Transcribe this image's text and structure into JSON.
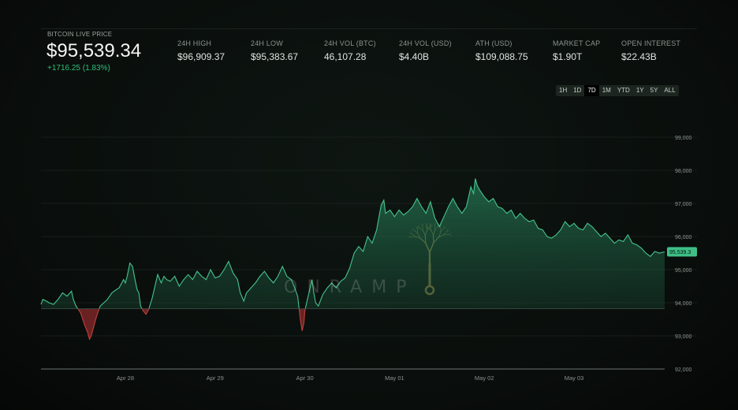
{
  "header": {
    "live_label": "BITCOIN LIVE PRICE",
    "price": "$95,539.34",
    "change": "+1716.25 (1.83%)",
    "stats": [
      {
        "label": "24H HIGH",
        "value": "$96,909.37"
      },
      {
        "label": "24H LOW",
        "value": "$95,383.67"
      },
      {
        "label": "24H VOL (BTC)",
        "value": "46,107.28"
      },
      {
        "label": "24H VOL (USD)",
        "value": "$4.40B"
      },
      {
        "label": "ATH (USD)",
        "value": "$109,088.75"
      },
      {
        "label": "MARKET CAP",
        "value": "$1.90T"
      },
      {
        "label": "OPEN INTEREST",
        "value": "$22.43B"
      }
    ]
  },
  "range_buttons": [
    "1H",
    "1D",
    "7D",
    "1M",
    "YTD",
    "1Y",
    "5Y",
    "ALL"
  ],
  "active_range": "7D",
  "watermark": "ONRAMP",
  "colors": {
    "up_line": "#3fbf86",
    "down_fill": "#9b2b2b",
    "badge": "#3fbf86",
    "grid": "#1c2420",
    "text_muted": "#8b948f"
  },
  "chart_data": {
    "type": "area",
    "x_unit": "days since Apr 27 00:00 (Apr 28 = 1, May 03 = 6)",
    "x_ticks": [
      {
        "x": 1,
        "label": "Apr 28"
      },
      {
        "x": 2,
        "label": "Apr 29"
      },
      {
        "x": 3,
        "label": "Apr 30"
      },
      {
        "x": 4,
        "label": "May 01"
      },
      {
        "x": 5,
        "label": "May 02"
      },
      {
        "x": 6,
        "label": "May 03"
      }
    ],
    "y_ticks": [
      {
        "y": 92000,
        "label": "92,000"
      },
      {
        "y": 93000,
        "label": "93,000"
      },
      {
        "y": 94000,
        "label": "94,000"
      },
      {
        "y": 95000,
        "label": "95,000"
      },
      {
        "y": 96000,
        "label": "96,000"
      },
      {
        "y": 97000,
        "label": "97,000"
      },
      {
        "y": 98000,
        "label": "98,000"
      },
      {
        "y": 99000,
        "label": "99,000"
      }
    ],
    "ylim": [
      92000,
      99000
    ],
    "xlim": [
      0.06,
      7.01
    ],
    "baseline": 93820,
    "current_value": 95539.34,
    "current_label": "95,539.3",
    "grid": true,
    "series": [
      {
        "name": "BTC price",
        "points": [
          [
            0.06,
            93950
          ],
          [
            0.08,
            94100
          ],
          [
            0.12,
            94050
          ],
          [
            0.15,
            94000
          ],
          [
            0.2,
            93950
          ],
          [
            0.25,
            94100
          ],
          [
            0.3,
            94300
          ],
          [
            0.35,
            94200
          ],
          [
            0.4,
            94350
          ],
          [
            0.42,
            94100
          ],
          [
            0.45,
            93900
          ],
          [
            0.5,
            93700
          ],
          [
            0.55,
            93300
          ],
          [
            0.58,
            93100
          ],
          [
            0.6,
            92900
          ],
          [
            0.62,
            93000
          ],
          [
            0.65,
            93300
          ],
          [
            0.68,
            93600
          ],
          [
            0.72,
            93900
          ],
          [
            0.76,
            94000
          ],
          [
            0.8,
            94100
          ],
          [
            0.85,
            94300
          ],
          [
            0.9,
            94400
          ],
          [
            0.93,
            94450
          ],
          [
            0.97,
            94650
          ],
          [
            1.0,
            94600
          ],
          [
            0.98,
            94700
          ],
          [
            1.02,
            94800
          ],
          [
            1.05,
            95200
          ],
          [
            1.08,
            95100
          ],
          [
            1.1,
            94800
          ],
          [
            1.13,
            94400
          ],
          [
            1.15,
            94300
          ],
          [
            1.17,
            93900
          ],
          [
            1.2,
            93750
          ],
          [
            1.23,
            93650
          ],
          [
            1.26,
            93800
          ],
          [
            1.3,
            94150
          ],
          [
            1.33,
            94500
          ],
          [
            1.36,
            94850
          ],
          [
            1.4,
            94600
          ],
          [
            1.43,
            94800
          ],
          [
            1.46,
            94700
          ],
          [
            1.5,
            94650
          ],
          [
            1.55,
            94800
          ],
          [
            1.6,
            94500
          ],
          [
            1.65,
            94700
          ],
          [
            1.7,
            94850
          ],
          [
            1.75,
            94700
          ],
          [
            1.8,
            94950
          ],
          [
            1.85,
            94800
          ],
          [
            1.9,
            94700
          ],
          [
            1.95,
            95000
          ],
          [
            2.0,
            94750
          ],
          [
            2.05,
            94800
          ],
          [
            2.1,
            95000
          ],
          [
            2.15,
            95250
          ],
          [
            2.2,
            94900
          ],
          [
            2.25,
            94700
          ],
          [
            2.28,
            94300
          ],
          [
            2.32,
            94050
          ],
          [
            2.35,
            94300
          ],
          [
            2.4,
            94450
          ],
          [
            2.45,
            94600
          ],
          [
            2.5,
            94800
          ],
          [
            2.55,
            94950
          ],
          [
            2.6,
            94750
          ],
          [
            2.65,
            94600
          ],
          [
            2.7,
            94800
          ],
          [
            2.75,
            95100
          ],
          [
            2.8,
            94800
          ],
          [
            2.85,
            94700
          ],
          [
            2.88,
            94500
          ],
          [
            2.92,
            94200
          ],
          [
            2.95,
            93500
          ],
          [
            2.97,
            93150
          ],
          [
            2.99,
            93400
          ],
          [
            3.0,
            93750
          ],
          [
            3.02,
            94000
          ],
          [
            3.05,
            94350
          ],
          [
            3.08,
            94700
          ],
          [
            3.1,
            94300
          ],
          [
            3.12,
            94000
          ],
          [
            3.15,
            93900
          ],
          [
            3.2,
            94250
          ],
          [
            3.25,
            94450
          ],
          [
            3.3,
            94600
          ],
          [
            3.35,
            94450
          ],
          [
            3.4,
            94650
          ],
          [
            3.45,
            94750
          ],
          [
            3.5,
            95050
          ],
          [
            3.55,
            95500
          ],
          [
            3.6,
            95700
          ],
          [
            3.65,
            95550
          ],
          [
            3.7,
            96000
          ],
          [
            3.75,
            95800
          ],
          [
            3.8,
            96200
          ],
          [
            3.85,
            96950
          ],
          [
            3.88,
            97100
          ],
          [
            3.9,
            96700
          ],
          [
            3.95,
            96800
          ],
          [
            4.0,
            96600
          ],
          [
            4.05,
            96800
          ],
          [
            4.1,
            96650
          ],
          [
            4.15,
            96750
          ],
          [
            4.2,
            96900
          ],
          [
            4.25,
            97150
          ],
          [
            4.3,
            96900
          ],
          [
            4.35,
            96700
          ],
          [
            4.4,
            97050
          ],
          [
            4.45,
            96550
          ],
          [
            4.5,
            96300
          ],
          [
            4.55,
            96600
          ],
          [
            4.6,
            96900
          ],
          [
            4.65,
            97150
          ],
          [
            4.7,
            96900
          ],
          [
            4.75,
            96700
          ],
          [
            4.8,
            96900
          ],
          [
            4.85,
            97500
          ],
          [
            4.88,
            97300
          ],
          [
            4.9,
            97750
          ],
          [
            4.92,
            97550
          ],
          [
            4.95,
            97400
          ],
          [
            5.0,
            97200
          ],
          [
            5.05,
            97050
          ],
          [
            5.1,
            97150
          ],
          [
            5.15,
            96900
          ],
          [
            5.2,
            96850
          ],
          [
            5.25,
            96700
          ],
          [
            5.3,
            96800
          ],
          [
            5.35,
            96550
          ],
          [
            5.4,
            96700
          ],
          [
            5.45,
            96550
          ],
          [
            5.5,
            96450
          ],
          [
            5.55,
            96500
          ],
          [
            5.6,
            96250
          ],
          [
            5.65,
            96200
          ],
          [
            5.7,
            96000
          ],
          [
            5.75,
            95950
          ],
          [
            5.8,
            96050
          ],
          [
            5.85,
            96200
          ],
          [
            5.9,
            96450
          ],
          [
            5.95,
            96300
          ],
          [
            6.0,
            96400
          ],
          [
            6.05,
            96250
          ],
          [
            6.1,
            96200
          ],
          [
            6.15,
            96400
          ],
          [
            6.2,
            96300
          ],
          [
            6.25,
            96150
          ],
          [
            6.3,
            96000
          ],
          [
            6.35,
            96100
          ],
          [
            6.4,
            95950
          ],
          [
            6.45,
            95800
          ],
          [
            6.5,
            95900
          ],
          [
            6.55,
            95850
          ],
          [
            6.6,
            96050
          ],
          [
            6.65,
            95800
          ],
          [
            6.7,
            95750
          ],
          [
            6.75,
            95650
          ],
          [
            6.8,
            95500
          ],
          [
            6.85,
            95400
          ],
          [
            6.9,
            95550
          ],
          [
            6.95,
            95500
          ],
          [
            7.01,
            95539
          ]
        ]
      }
    ]
  }
}
